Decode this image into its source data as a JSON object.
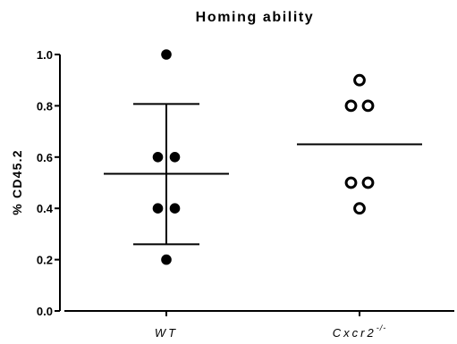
{
  "chart_data": {
    "type": "scatter",
    "title": "Homing ability",
    "ylabel": "% CD45.2",
    "xlabel": "",
    "ylim": [
      0,
      1.0
    ],
    "yticks": [
      "0.0",
      "0.2",
      "0.4",
      "0.6",
      "0.8",
      "1.0"
    ],
    "categories": [
      {
        "label": "WT",
        "superscript": ""
      },
      {
        "label": "Cxcr2",
        "superscript": "-/-"
      }
    ],
    "series": [
      {
        "category": "WT",
        "marker": "filled-circle",
        "values": [
          1.0,
          0.6,
          0.6,
          0.4,
          0.4,
          0.2
        ],
        "mean": 0.535,
        "error_low": 0.26,
        "error_high": 0.807
      },
      {
        "category": "Cxcr2",
        "marker": "open-circle",
        "values": [
          0.9,
          0.8,
          0.8,
          0.5,
          0.5,
          0.4
        ],
        "mean": 0.65
      }
    ],
    "grid": false,
    "legend": "none"
  }
}
